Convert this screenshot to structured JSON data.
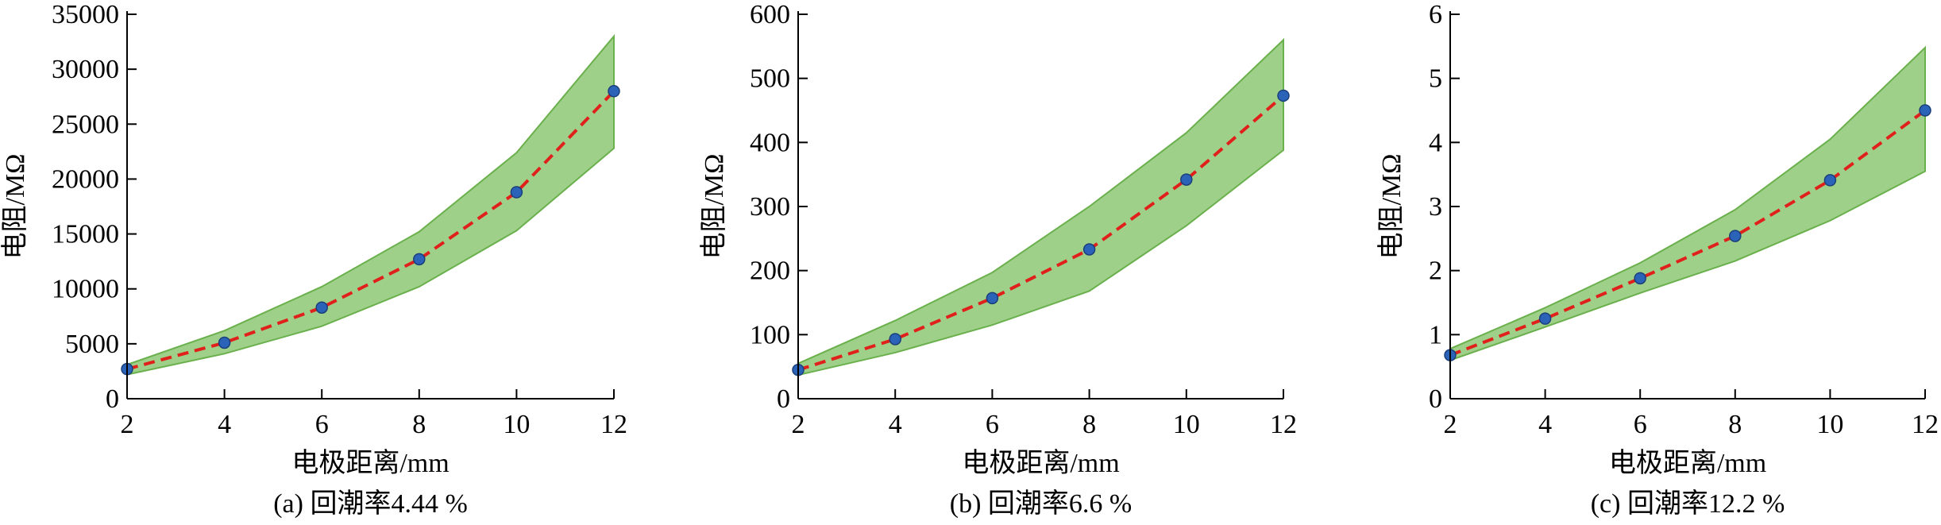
{
  "chart_data": [
    {
      "type": "line",
      "caption": "(a) 回潮率4.44 %",
      "xlabel": "电极距离/mm",
      "ylabel": "电阻/MΩ",
      "xlim": [
        2,
        12
      ],
      "ylim": [
        0,
        35000
      ],
      "x_ticks": [
        2,
        4,
        6,
        8,
        10,
        12
      ],
      "y_ticks": [
        0,
        5000,
        10000,
        15000,
        20000,
        25000,
        30000,
        35000
      ],
      "x": [
        2,
        4,
        6,
        8,
        10,
        12
      ],
      "values": [
        2700,
        5100,
        8300,
        12700,
        18800,
        28000
      ],
      "band_upper": [
        3100,
        6200,
        10200,
        15200,
        22400,
        33000
      ],
      "band_lower": [
        2200,
        4100,
        6600,
        10200,
        15300,
        22800
      ],
      "grid": false
    },
    {
      "type": "line",
      "caption": "(b) 回潮率6.6 %",
      "xlabel": "电极距离/mm",
      "ylabel": "电阻/MΩ",
      "xlim": [
        2,
        12
      ],
      "ylim": [
        0,
        600
      ],
      "x_ticks": [
        2,
        4,
        6,
        8,
        10,
        12
      ],
      "y_ticks": [
        0,
        100,
        200,
        300,
        400,
        500,
        600
      ],
      "x": [
        2,
        4,
        6,
        8,
        10,
        12
      ],
      "values": [
        45,
        93,
        157,
        233,
        342,
        473
      ],
      "band_upper": [
        55,
        122,
        197,
        300,
        415,
        560
      ],
      "band_lower": [
        37,
        72,
        115,
        168,
        270,
        388
      ],
      "grid": false
    },
    {
      "type": "line",
      "caption": "(c) 回潮率12.2 %",
      "xlabel": "电极距离/mm",
      "ylabel": "电阻/MΩ",
      "xlim": [
        2,
        12
      ],
      "ylim": [
        0,
        6
      ],
      "x_ticks": [
        2,
        4,
        6,
        8,
        10,
        12
      ],
      "y_ticks": [
        0,
        1,
        2,
        3,
        4,
        5,
        6
      ],
      "x": [
        2,
        4,
        6,
        8,
        10,
        12
      ],
      "values": [
        0.68,
        1.25,
        1.88,
        2.54,
        3.41,
        4.5
      ],
      "band_upper": [
        0.78,
        1.42,
        2.12,
        2.95,
        4.05,
        5.48
      ],
      "band_lower": [
        0.6,
        1.12,
        1.65,
        2.15,
        2.78,
        3.55
      ],
      "grid": false
    }
  ],
  "colors": {
    "band_fill": "#9fd08a",
    "band_edge": "#6ab04c",
    "line": "#e0201b",
    "point": "#2a63b8"
  }
}
